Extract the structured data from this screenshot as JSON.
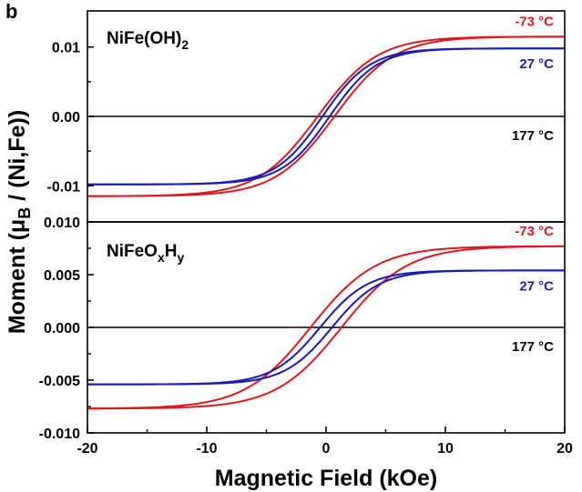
{
  "chart_data": {
    "type": "line",
    "panel_letter": "b",
    "xlabel": "Magnetic Field (kOe)",
    "ylabel_main": "Moment (μ",
    "ylabel_sub": "B",
    "ylabel_rest": " / (Ni,Fe))",
    "xlim": [
      -20,
      20
    ],
    "xticks": [
      "-20",
      "-10",
      "0",
      "10",
      "20"
    ],
    "colors": {
      "red": "#e0181e",
      "blue": "#1a1ab4",
      "black": "#000000"
    },
    "panels": [
      {
        "title_main": "NiFe(OH)",
        "title_sub": "2",
        "ylim": [
          -0.0152,
          0.0152
        ],
        "yticks": [
          {
            "value": 0.01,
            "label": "0.01"
          },
          {
            "value": 0.0,
            "label": "0.00"
          },
          {
            "value": -0.01,
            "label": "-0.01"
          }
        ],
        "series": [
          {
            "name": "-73 °C",
            "color": "red",
            "Ms": 0.0115,
            "H0": 5.0,
            "Hc": 0.7
          },
          {
            "name": "27 °C",
            "color": "blue",
            "Ms": 0.0098,
            "H0": 4.0,
            "Hc": 0.3
          },
          {
            "name": "177 °C",
            "color": "black",
            "flat": 0.0
          }
        ]
      },
      {
        "title_main": "NiFeO",
        "title_sub1": "x",
        "title_mid": "H",
        "title_sub2": "y",
        "ylim": [
          -0.01,
          0.01
        ],
        "yticks": [
          {
            "value": 0.01,
            "label": "0.010"
          },
          {
            "value": 0.005,
            "label": "0.005"
          },
          {
            "value": 0.0,
            "label": "0.000"
          },
          {
            "value": -0.005,
            "label": "-0.005"
          },
          {
            "value": -0.01,
            "label": "-0.010"
          }
        ],
        "series": [
          {
            "name": "-73 °C",
            "color": "red",
            "Ms": 0.0077,
            "H0": 5.5,
            "Hc": 1.3
          },
          {
            "name": "27 °C",
            "color": "blue",
            "Ms": 0.0054,
            "H0": 4.0,
            "Hc": 0.5
          },
          {
            "name": "177 °C",
            "color": "black",
            "flat": 0.0
          }
        ]
      }
    ]
  }
}
